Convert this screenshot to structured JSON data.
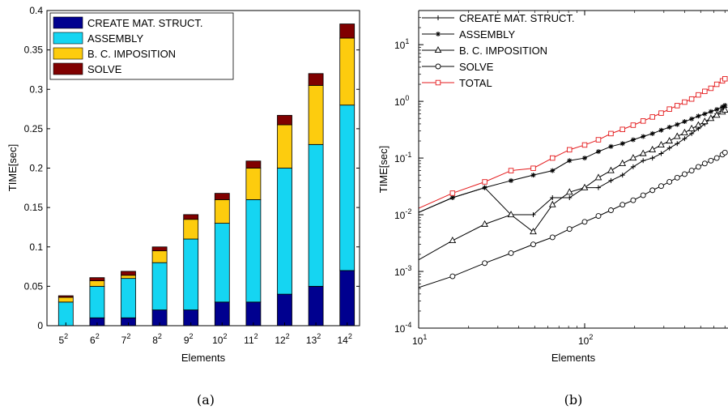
{
  "figure": {
    "captions": [
      "(a)",
      "(b)"
    ]
  },
  "chart_data": [
    {
      "type": "bar",
      "stacked": true,
      "categories": [
        "5",
        "6",
        "7",
        "8",
        "9",
        "10",
        "11",
        "12",
        "13",
        "14"
      ],
      "category_exponent": "2",
      "series": [
        {
          "name": "CREATE MAT. STRUCT.",
          "color": "#00008f",
          "values": [
            0.0,
            0.01,
            0.01,
            0.02,
            0.02,
            0.03,
            0.03,
            0.04,
            0.05,
            0.07
          ]
        },
        {
          "name": "ASSEMBLY",
          "color": "#15d5f2",
          "values": [
            0.03,
            0.04,
            0.05,
            0.06,
            0.09,
            0.1,
            0.13,
            0.16,
            0.18,
            0.21
          ]
        },
        {
          "name": "B. C. IMPOSITION",
          "color": "#fdcc0e",
          "values": [
            0.006,
            0.007,
            0.004,
            0.015,
            0.025,
            0.03,
            0.04,
            0.055,
            0.075,
            0.085
          ]
        },
        {
          "name": "SOLVE",
          "color": "#800000",
          "values": [
            0.002,
            0.004,
            0.005,
            0.005,
            0.006,
            0.008,
            0.009,
            0.012,
            0.015,
            0.018
          ]
        }
      ],
      "xlabel": "Elements",
      "ylabel": "TIME[sec]",
      "ylim": [
        0,
        0.4
      ],
      "yticks": [
        "0",
        "0.05",
        "0.1",
        "0.15",
        "0.2",
        "0.25",
        "0.3",
        "0.35",
        "0.4"
      ],
      "legend": "top-left",
      "grid": false
    },
    {
      "type": "line",
      "xscale": "log",
      "yscale": "log",
      "xlim": [
        10,
        700
      ],
      "ylim": [
        0.0001,
        40
      ],
      "xlabel": "Elements",
      "ylabel": "TIME[sec]",
      "xticks": [
        {
          "base": "10",
          "exp": "1",
          "value": 10
        },
        {
          "base": "10",
          "exp": "2",
          "value": 100
        }
      ],
      "yticks": [
        {
          "base": "10",
          "exp": "-4",
          "value": 0.0001
        },
        {
          "base": "10",
          "exp": "-3",
          "value": 0.001
        },
        {
          "base": "10",
          "exp": "-2",
          "value": 0.01
        },
        {
          "base": "10",
          "exp": "-1",
          "value": 0.1
        },
        {
          "base": "10",
          "exp": "0",
          "value": 1
        },
        {
          "base": "10",
          "exp": "1",
          "value": 10
        }
      ],
      "legend": "top-left",
      "grid": false,
      "series": [
        {
          "name": "CREATE MAT. STRUCT.",
          "marker": "plus",
          "color": "#000000",
          "x": [
            10,
            16,
            25,
            36,
            49,
            64,
            81,
            100,
            121,
            144,
            169,
            196,
            225,
            256,
            289,
            324,
            361,
            400,
            441,
            484,
            529,
            576,
            625,
            676,
            700
          ],
          "y": [
            0.011,
            0.02,
            0.03,
            0.01,
            0.01,
            0.02,
            0.02,
            0.03,
            0.03,
            0.04,
            0.05,
            0.07,
            0.09,
            0.1,
            0.12,
            0.15,
            0.18,
            0.22,
            0.27,
            0.33,
            0.4,
            0.5,
            0.6,
            0.72,
            0.78
          ]
        },
        {
          "name": "ASSEMBLY",
          "marker": "star",
          "color": "#000000",
          "x": [
            10,
            16,
            25,
            36,
            49,
            64,
            81,
            100,
            121,
            144,
            169,
            196,
            225,
            256,
            289,
            324,
            361,
            400,
            441,
            484,
            529,
            576,
            625,
            676,
            700
          ],
          "y": [
            0.011,
            0.02,
            0.03,
            0.04,
            0.05,
            0.06,
            0.09,
            0.1,
            0.13,
            0.16,
            0.18,
            0.21,
            0.24,
            0.27,
            0.31,
            0.35,
            0.39,
            0.44,
            0.49,
            0.55,
            0.6,
            0.66,
            0.72,
            0.8,
            0.85
          ]
        },
        {
          "name": "B. C. IMPOSITION",
          "marker": "triangle",
          "color": "#000000",
          "x": [
            10,
            16,
            25,
            36,
            49,
            64,
            81,
            100,
            121,
            144,
            169,
            196,
            225,
            256,
            289,
            324,
            361,
            400,
            441,
            484,
            529,
            576,
            625,
            676,
            700
          ],
          "y": [
            0.0016,
            0.0035,
            0.0068,
            0.01,
            0.005,
            0.015,
            0.025,
            0.03,
            0.045,
            0.06,
            0.08,
            0.1,
            0.12,
            0.14,
            0.17,
            0.2,
            0.24,
            0.28,
            0.33,
            0.38,
            0.44,
            0.5,
            0.57,
            0.65,
            0.7
          ]
        },
        {
          "name": "SOLVE",
          "marker": "circle",
          "color": "#000000",
          "x": [
            10,
            16,
            25,
            36,
            49,
            64,
            81,
            100,
            121,
            144,
            169,
            196,
            225,
            256,
            289,
            324,
            361,
            400,
            441,
            484,
            529,
            576,
            625,
            676,
            700
          ],
          "y": [
            0.00052,
            0.00082,
            0.0014,
            0.0021,
            0.003,
            0.004,
            0.0056,
            0.0075,
            0.0095,
            0.012,
            0.015,
            0.018,
            0.022,
            0.027,
            0.032,
            0.038,
            0.045,
            0.052,
            0.06,
            0.07,
            0.08,
            0.09,
            0.1,
            0.115,
            0.125
          ]
        },
        {
          "name": "TOTAL",
          "marker": "square",
          "color": "#e41a1c",
          "x": [
            10,
            16,
            25,
            36,
            49,
            64,
            81,
            100,
            121,
            144,
            169,
            196,
            225,
            256,
            289,
            324,
            361,
            400,
            441,
            484,
            529,
            576,
            625,
            676,
            700
          ],
          "y": [
            0.013,
            0.024,
            0.038,
            0.06,
            0.066,
            0.1,
            0.14,
            0.17,
            0.21,
            0.27,
            0.32,
            0.38,
            0.45,
            0.53,
            0.62,
            0.73,
            0.84,
            0.97,
            1.1,
            1.3,
            1.5,
            1.7,
            2.0,
            2.3,
            2.5
          ]
        }
      ]
    }
  ]
}
